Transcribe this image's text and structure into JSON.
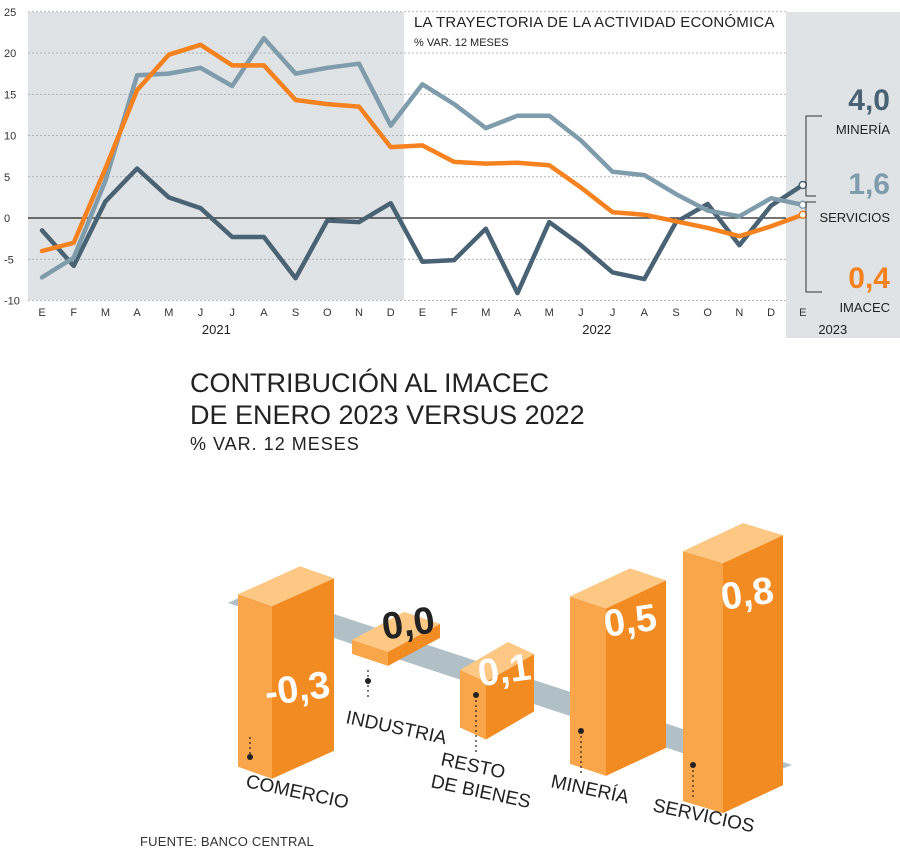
{
  "chart_data": [
    {
      "type": "line",
      "title": "LA TRAYECTORIA DE LA ACTIVIDAD ECONÓMICA",
      "subtitle": "% VAR. 12 MESES",
      "x": [
        "E",
        "F",
        "M",
        "A",
        "M",
        "J",
        "J",
        "A",
        "S",
        "O",
        "N",
        "D",
        "E",
        "F",
        "M",
        "A",
        "M",
        "J",
        "J",
        "A",
        "S",
        "O",
        "N",
        "D",
        "E"
      ],
      "year_labels": [
        "2021",
        "2022",
        "2023"
      ],
      "ylim": [
        -10,
        25
      ],
      "yticks": [
        25,
        20,
        15,
        10,
        5,
        0,
        -5,
        -10
      ],
      "grid": true,
      "shaded_periods": [
        "2021",
        "2023"
      ],
      "series": [
        {
          "name": "MINERÍA",
          "color": "#4a6374",
          "end_label": "4,0",
          "values": [
            -1.5,
            -5.8,
            2.0,
            6.0,
            2.5,
            1.2,
            -2.3,
            -2.3,
            -7.3,
            -0.3,
            -0.5,
            1.8,
            -5.3,
            -5.1,
            -1.3,
            -9.1,
            -0.5,
            -3.3,
            -6.6,
            -7.4,
            -0.5,
            1.7,
            -3.3,
            1.5,
            4.0
          ]
        },
        {
          "name": "SERVICIOS",
          "color": "#7e9cab",
          "end_label": "1,6",
          "values": [
            -7.2,
            -4.8,
            4.5,
            17.3,
            17.5,
            18.2,
            16.0,
            21.8,
            17.5,
            18.2,
            18.7,
            11.2,
            16.2,
            13.8,
            10.9,
            12.4,
            12.4,
            9.4,
            5.6,
            5.2,
            2.9,
            0.9,
            0.2,
            2.4,
            1.6
          ]
        },
        {
          "name": "IMACEC",
          "color": "#f5821f",
          "end_label": "0,4",
          "values": [
            -4.0,
            -3.0,
            6.0,
            15.5,
            19.8,
            21.0,
            18.5,
            18.5,
            14.3,
            13.8,
            13.5,
            8.6,
            8.8,
            6.8,
            6.6,
            6.7,
            6.4,
            3.7,
            0.7,
            0.4,
            -0.4,
            -1.2,
            -2.2,
            -1.0,
            0.4
          ]
        }
      ]
    },
    {
      "type": "bar",
      "title_lines": [
        "CONTRIBUCIÓN AL IMACEC",
        "DE ENERO 2023 VERSUS 2022"
      ],
      "subtitle": "% VAR. 12 MESES",
      "categories": [
        [
          "COMERCIO"
        ],
        [
          "INDUSTRIA"
        ],
        [
          "RESTO",
          "DE BIENES"
        ],
        [
          "MINERÍA"
        ],
        [
          "SERVICIOS"
        ]
      ],
      "values": [
        -0.3,
        0.0,
        0.1,
        0.5,
        0.8
      ],
      "value_labels": [
        "-0,3",
        "0,0",
        "0,1",
        "0,5",
        "0,8"
      ],
      "colors": {
        "front": "#f9a54a",
        "side": "#f28b22",
        "top": "#fdc784",
        "band": "#a8b9c1"
      }
    }
  ],
  "source": "FUENTE: BANCO CENTRAL"
}
